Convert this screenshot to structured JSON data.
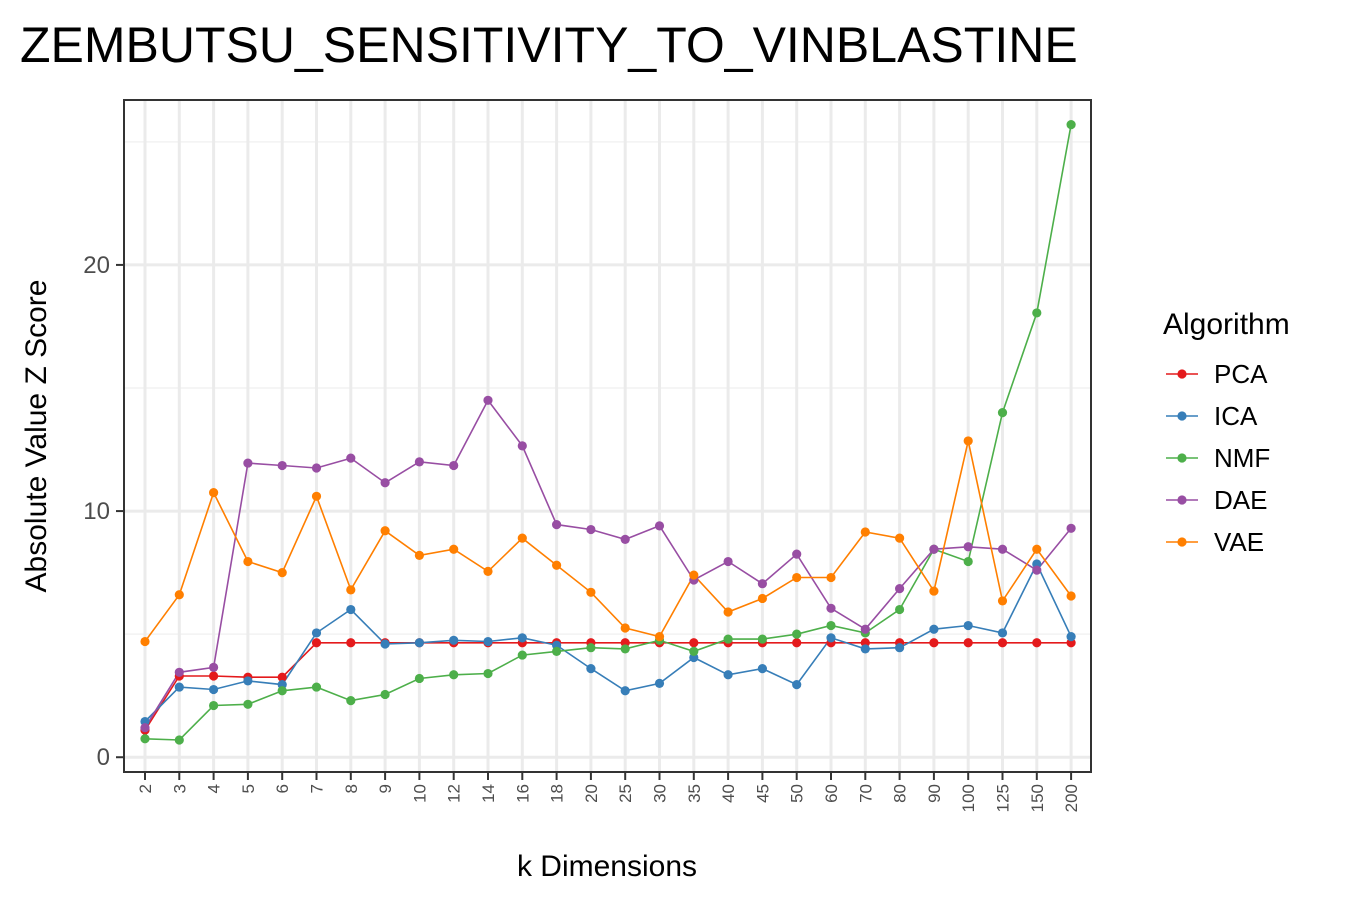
{
  "chart_data": {
    "type": "line",
    "title": "ZEMBUTSU_SENSITIVITY_TO_VINBLASTINE",
    "xlabel": "k Dimensions",
    "ylabel": "Absolute Value Z Score",
    "categories": [
      "2",
      "3",
      "4",
      "5",
      "6",
      "7",
      "8",
      "9",
      "10",
      "12",
      "14",
      "16",
      "18",
      "20",
      "25",
      "30",
      "35",
      "40",
      "45",
      "50",
      "60",
      "70",
      "80",
      "90",
      "100",
      "125",
      "150",
      "200"
    ],
    "yticks": [
      0,
      10,
      20
    ],
    "ylim": [
      -0.6,
      26.7
    ],
    "grid": true,
    "legend": {
      "title": "Algorithm",
      "placement": "right"
    },
    "series": [
      {
        "name": "PCA",
        "color": "#E41A1C",
        "values": [
          1.1,
          3.3,
          3.3,
          3.25,
          3.25,
          4.65,
          4.65,
          4.65,
          4.65,
          4.65,
          4.65,
          4.65,
          4.65,
          4.65,
          4.65,
          4.65,
          4.65,
          4.65,
          4.65,
          4.65,
          4.65,
          4.65,
          4.65,
          4.65,
          4.65,
          4.65,
          4.65,
          4.65
        ]
      },
      {
        "name": "ICA",
        "color": "#377EB8",
        "values": [
          1.45,
          2.85,
          2.75,
          3.1,
          2.95,
          5.05,
          6.0,
          4.6,
          4.65,
          4.75,
          4.7,
          4.85,
          4.55,
          3.6,
          2.7,
          3.0,
          4.05,
          3.35,
          3.6,
          2.95,
          4.85,
          4.4,
          4.45,
          5.2,
          5.35,
          5.05,
          7.85,
          4.9
        ]
      },
      {
        "name": "NMF",
        "color": "#4DAF4A",
        "values": [
          0.75,
          0.7,
          2.1,
          2.15,
          2.7,
          2.85,
          2.3,
          2.55,
          3.2,
          3.35,
          3.4,
          4.15,
          4.3,
          4.45,
          4.4,
          4.75,
          4.3,
          4.8,
          4.8,
          5.0,
          5.35,
          5.05,
          6.0,
          8.45,
          7.95,
          14.0,
          18.05,
          25.7
        ]
      },
      {
        "name": "DAE",
        "color": "#984EA3",
        "values": [
          1.2,
          3.45,
          3.65,
          11.95,
          11.85,
          11.75,
          12.15,
          11.15,
          12.0,
          11.85,
          14.5,
          12.65,
          9.45,
          9.25,
          8.85,
          9.4,
          7.2,
          7.95,
          7.05,
          8.25,
          6.05,
          5.2,
          6.85,
          8.45,
          8.55,
          8.45,
          7.6,
          9.3
        ]
      },
      {
        "name": "VAE",
        "color": "#FF7F00",
        "values": [
          4.7,
          6.6,
          10.75,
          7.95,
          7.5,
          10.6,
          6.8,
          9.2,
          8.2,
          8.45,
          7.55,
          8.9,
          7.8,
          6.7,
          5.25,
          4.9,
          7.4,
          5.9,
          6.45,
          7.3,
          7.3,
          9.15,
          8.9,
          6.75,
          12.85,
          6.35,
          8.45,
          6.55
        ]
      }
    ]
  }
}
